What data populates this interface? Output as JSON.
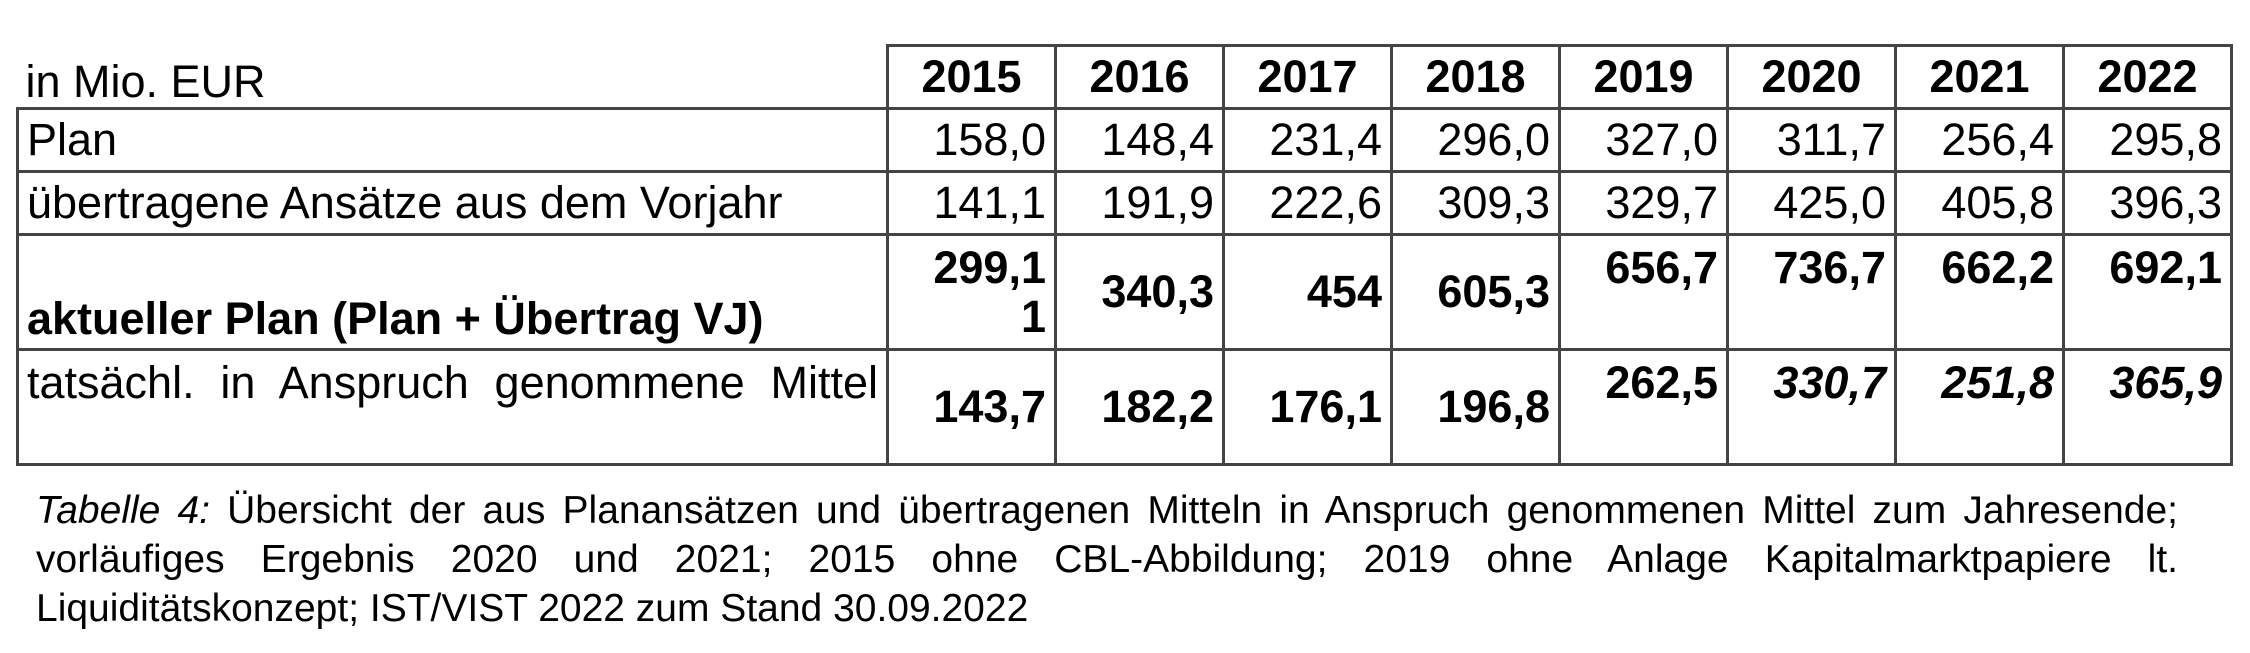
{
  "table": {
    "unit_label": "in Mio. EUR",
    "years": [
      "2015",
      "2016",
      "2017",
      "2018",
      "2019",
      "2020",
      "2021",
      "2022"
    ],
    "rows": [
      {
        "label": "Plan",
        "values": [
          "158,0",
          "148,4",
          "231,4",
          "296,0",
          "327,0",
          "311,7",
          "256,4",
          "295,8"
        ]
      },
      {
        "label": "übertragene Ansätze aus dem Vorjahr",
        "values": [
          "141,1",
          "191,9",
          "222,6",
          "309,3",
          "329,7",
          "425,0",
          "405,8",
          "396,3"
        ]
      },
      {
        "label": "aktueller Plan (Plan + Übertrag VJ)",
        "values": [
          "299,11",
          "340,3",
          "454",
          "605,3",
          "656,7",
          "736,7",
          "662,2",
          "692,1"
        ]
      },
      {
        "label": "tatsächl. in Anspruch genommene Mittel",
        "values": [
          "143,7",
          "182,2",
          "176,1",
          "196,8",
          "262,5",
          "330,7",
          "251,8",
          "365,9"
        ]
      }
    ]
  },
  "caption": {
    "label": "Tabelle 4:",
    "text": "Übersicht der aus Planansätzen und übertragenen Mitteln in Anspruch genommenen Mittel zum Jahresende; vorläufiges Ergebnis 2020 und 2021; 2015 ohne CBL-Abbildung; 2019 ohne Anlage Kapitalmarktpapiere lt. Liquiditätskonzept; IST/VIST 2022 zum Stand 30.09.2022"
  }
}
